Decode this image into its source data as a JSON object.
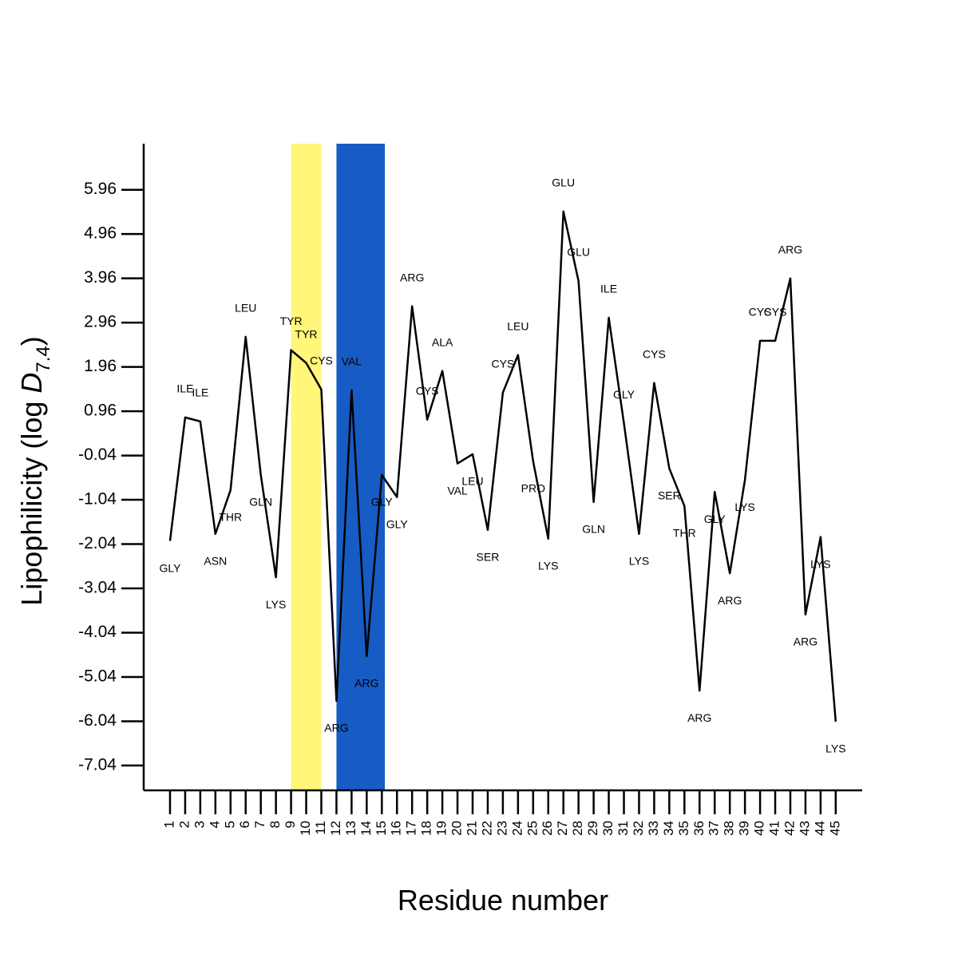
{
  "chart_data": {
    "type": "line",
    "x_label": "Residue number",
    "y_label": {
      "text": "Lipophilicity (log ",
      "symbol": "D",
      "subscript": "7.4",
      "close": ")"
    },
    "x": [
      1,
      2,
      3,
      4,
      5,
      6,
      7,
      8,
      9,
      10,
      11,
      12,
      13,
      14,
      15,
      16,
      17,
      18,
      19,
      20,
      21,
      22,
      23,
      24,
      25,
      26,
      27,
      28,
      29,
      30,
      31,
      32,
      33,
      34,
      35,
      36,
      37,
      38,
      39,
      40,
      41,
      42,
      43,
      44,
      45
    ],
    "residues": [
      "GLY",
      "ILE",
      "ILE",
      "ASN",
      "THR",
      "LEU",
      "GLN",
      "LYS",
      "TYR",
      "TYR",
      "CYS",
      "ARG",
      "VAL",
      "ARG",
      "GLY",
      "GLY",
      "ARG",
      "CYS",
      "ALA",
      "VAL",
      "LEU",
      "SER",
      "CYS",
      "LEU",
      "PRO",
      "LYS",
      "GLU",
      "GLU",
      "GLN",
      "ILE",
      "GLY",
      "LYS",
      "CYS",
      "SER",
      "THR",
      "ARG",
      "GLY",
      "ARG",
      "LYS",
      "CYS",
      "CYS",
      "ARG",
      "ARG",
      "LYS",
      "LYS"
    ],
    "series": [
      {
        "name": "Lipophilicity",
        "color": "#000000",
        "values": [
          -1.97,
          0.82,
          0.73,
          -1.81,
          -0.82,
          2.64,
          -0.48,
          -2.79,
          2.34,
          2.05,
          1.45,
          -5.58,
          1.43,
          -4.57,
          -0.48,
          -0.98,
          3.33,
          0.77,
          1.87,
          -0.22,
          -0.01,
          -1.72,
          1.38,
          2.23,
          -0.17,
          -1.92,
          5.47,
          3.9,
          -1.09,
          3.07,
          0.69,
          -1.81,
          1.6,
          -0.33,
          -1.18,
          -5.35,
          -0.86,
          -2.7,
          -0.59,
          2.55,
          2.55,
          3.96,
          -3.63,
          -1.88,
          -6.05
        ]
      }
    ],
    "highlights": [
      {
        "start": 9,
        "end": 11,
        "color": "#fff67a"
      },
      {
        "start": 12,
        "end": 15.2,
        "color": "#175cc4"
      }
    ],
    "xlim": [
      -0.74,
      46.75
    ],
    "xticks": [
      1,
      2,
      3,
      4,
      5,
      6,
      7,
      8,
      9,
      10,
      11,
      12,
      13,
      14,
      15,
      16,
      17,
      18,
      19,
      20,
      21,
      22,
      23,
      24,
      25,
      26,
      27,
      28,
      29,
      30,
      31,
      32,
      33,
      34,
      35,
      36,
      37,
      38,
      39,
      40,
      41,
      42,
      43,
      44,
      45
    ],
    "ylim": [
      -7.6,
      7.0
    ],
    "yticks": [
      5.96,
      4.96,
      3.96,
      2.96,
      1.96,
      0.96,
      -0.04,
      -1.04,
      -2.04,
      -3.04,
      -4.04,
      -5.04,
      -6.04,
      -7.04
    ],
    "grid": false
  }
}
